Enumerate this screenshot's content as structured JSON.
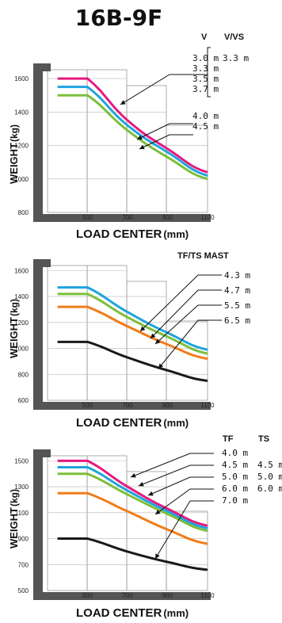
{
  "title": "16B-9F",
  "colors": {
    "magenta": "#e6197f",
    "blue": "#1fa3dd",
    "green": "#7cbf3a",
    "orange": "#f07c1a",
    "black": "#1a1a1a"
  },
  "chart_data": [
    {
      "type": "line",
      "xlabel": "LOAD CENTER",
      "xunit": "(mm)",
      "ylabel": "WEIGHT",
      "yunit": "(kg)",
      "xlim": [
        300,
        1100
      ],
      "ylim": [
        800,
        1700
      ],
      "xticks": [
        "500",
        "700",
        "900",
        "1100"
      ],
      "yticks": [
        "800",
        "1000",
        "1200",
        "1400",
        "1600"
      ],
      "legend_headers": [
        "V",
        "V/VS"
      ],
      "legend_rows": [
        [
          "3.0 m",
          "3.3 m"
        ],
        [
          "3.3 m",
          ""
        ],
        [
          "3.5 m",
          ""
        ],
        [
          "3.7 m",
          ""
        ],
        [
          "4.0 m",
          ""
        ],
        [
          "4.5 m",
          ""
        ]
      ],
      "series": [
        {
          "color": "magenta",
          "x": [
            350,
            500,
            700,
            900,
            1100
          ],
          "values": [
            1600,
            1600,
            1350,
            1180,
            1040
          ]
        },
        {
          "color": "blue",
          "x": [
            350,
            500,
            700,
            900,
            1100
          ],
          "values": [
            1550,
            1550,
            1320,
            1160,
            1020
          ]
        },
        {
          "color": "green",
          "x": [
            350,
            500,
            700,
            900,
            1100
          ],
          "values": [
            1500,
            1500,
            1290,
            1130,
            1000
          ]
        }
      ]
    },
    {
      "type": "line",
      "xlabel": "LOAD CENTER",
      "xunit": "(mm)",
      "ylabel": "WEIGHT",
      "yunit": "(kg)",
      "xlim": [
        300,
        1100
      ],
      "ylim": [
        600,
        1700
      ],
      "xticks": [
        "500",
        "700",
        "900",
        "1100"
      ],
      "yticks": [
        "600",
        "800",
        "1000",
        "1200",
        "1400",
        "1600"
      ],
      "legend_headers": [
        "TF/TS  MAST"
      ],
      "legend_rows": [
        [
          "4.3 m"
        ],
        [
          "4.7 m"
        ],
        [
          "5.5 m"
        ],
        [
          "6.5 m"
        ]
      ],
      "series": [
        {
          "color": "blue",
          "x": [
            350,
            500,
            700,
            900,
            1100
          ],
          "values": [
            1470,
            1470,
            1280,
            1120,
            990
          ]
        },
        {
          "color": "green",
          "x": [
            350,
            500,
            700,
            900,
            1100
          ],
          "values": [
            1420,
            1420,
            1240,
            1090,
            960
          ]
        },
        {
          "color": "orange",
          "x": [
            350,
            500,
            700,
            900,
            1100
          ],
          "values": [
            1320,
            1320,
            1170,
            1030,
            920
          ]
        },
        {
          "color": "black",
          "x": [
            350,
            500,
            700,
            900,
            1100
          ],
          "values": [
            1050,
            1050,
            930,
            830,
            750
          ]
        }
      ]
    },
    {
      "type": "line",
      "xlabel": "LOAD CENTER",
      "xunit": "(mm)",
      "ylabel": "WEIGHT",
      "yunit": "(kg)",
      "xlim": [
        300,
        1100
      ],
      "ylim": [
        500,
        1600
      ],
      "xticks": [
        "500",
        "700",
        "900",
        "1100"
      ],
      "yticks": [
        "500",
        "700",
        "900",
        "1100",
        "1300",
        "1500"
      ],
      "legend_headers": [
        "TF",
        "TS"
      ],
      "legend_rows": [
        [
          "4.0 m",
          ""
        ],
        [
          "4.5 m",
          "4.5 m"
        ],
        [
          "5.0 m",
          "5.0 m"
        ],
        [
          "6.0 m",
          "6.0 m"
        ],
        [
          "7.0 m",
          ""
        ]
      ],
      "series": [
        {
          "color": "magenta",
          "x": [
            350,
            500,
            700,
            900,
            1100
          ],
          "values": [
            1500,
            1500,
            1300,
            1130,
            1000
          ]
        },
        {
          "color": "blue",
          "x": [
            350,
            500,
            700,
            900,
            1100
          ],
          "values": [
            1450,
            1450,
            1270,
            1110,
            980
          ]
        },
        {
          "color": "green",
          "x": [
            350,
            500,
            700,
            900,
            1100
          ],
          "values": [
            1400,
            1400,
            1240,
            1090,
            960
          ]
        },
        {
          "color": "orange",
          "x": [
            350,
            500,
            700,
            900,
            1100
          ],
          "values": [
            1250,
            1250,
            1110,
            970,
            860
          ]
        },
        {
          "color": "black",
          "x": [
            350,
            500,
            700,
            900,
            1100
          ],
          "values": [
            900,
            900,
            800,
            720,
            660
          ]
        }
      ]
    }
  ]
}
